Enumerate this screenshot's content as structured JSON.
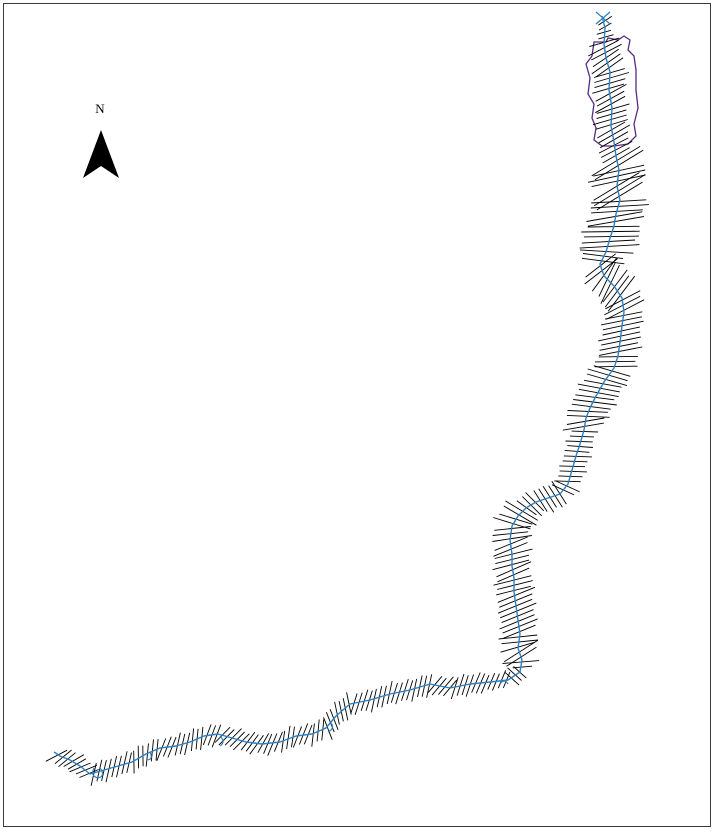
{
  "north_arrow": {
    "label": "N"
  },
  "colors": {
    "river": "#2f7fc1",
    "cross_section": "#000000",
    "reservoir_outline": "#5a2a82",
    "frame": "#3a3a3a",
    "background": "#ffffff"
  },
  "layers": [
    {
      "icon": "river-centerline",
      "color": "#2f7fc1"
    },
    {
      "icon": "cross-section-lines",
      "color": "#000000"
    },
    {
      "icon": "reservoir-polygon",
      "color": "#5a2a82"
    }
  ]
}
